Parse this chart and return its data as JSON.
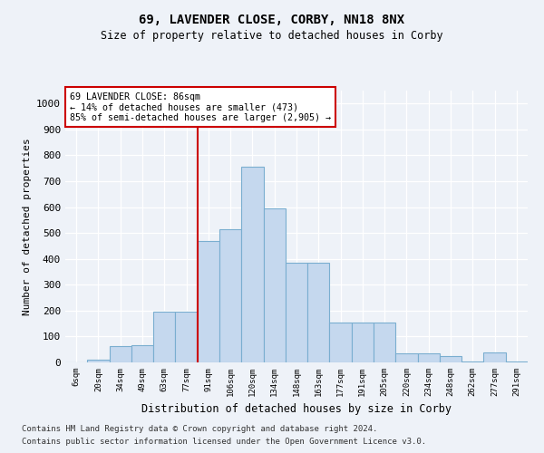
{
  "title": "69, LAVENDER CLOSE, CORBY, NN18 8NX",
  "subtitle": "Size of property relative to detached houses in Corby",
  "xlabel": "Distribution of detached houses by size in Corby",
  "ylabel": "Number of detached properties",
  "categories": [
    "6sqm",
    "20sqm",
    "34sqm",
    "49sqm",
    "63sqm",
    "77sqm",
    "91sqm",
    "106sqm",
    "120sqm",
    "134sqm",
    "148sqm",
    "163sqm",
    "177sqm",
    "191sqm",
    "205sqm",
    "220sqm",
    "234sqm",
    "248sqm",
    "262sqm",
    "277sqm",
    "291sqm"
  ],
  "values": [
    0,
    10,
    62,
    65,
    195,
    195,
    470,
    515,
    755,
    595,
    385,
    385,
    155,
    155,
    155,
    35,
    35,
    25,
    5,
    40,
    5
  ],
  "bar_color": "#c5d8ee",
  "bar_edge_color": "#7aaed0",
  "ref_line_x": 5.5,
  "ref_line_label": "69 LAVENDER CLOSE: 86sqm",
  "annotation_smaller": "← 14% of detached houses are smaller (473)",
  "annotation_larger": "85% of semi-detached houses are larger (2,905) →",
  "annotation_box_color": "#ffffff",
  "annotation_box_edge": "#cc0000",
  "footnote1": "Contains HM Land Registry data © Crown copyright and database right 2024.",
  "footnote2": "Contains public sector information licensed under the Open Government Licence v3.0.",
  "ylim": [
    0,
    1050
  ],
  "yticks": [
    0,
    100,
    200,
    300,
    400,
    500,
    600,
    700,
    800,
    900,
    1000
  ],
  "bg_color": "#eef2f8",
  "grid_color": "#ffffff",
  "ref_line_color": "#cc0000"
}
